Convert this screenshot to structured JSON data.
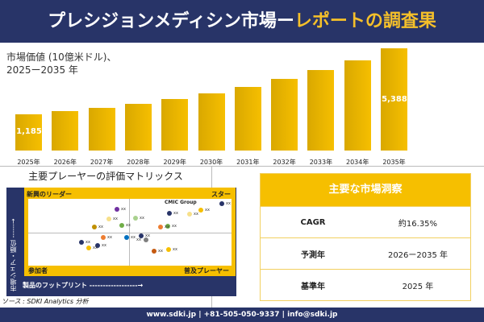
{
  "header": {
    "title_main": "プレシジョンメディシン市場ー",
    "title_accent": "レポートの調査果"
  },
  "chart_data": {
    "type": "bar",
    "title": "市場価値 (10億米ドル)、",
    "subtitle": "2025ー2035 年",
    "categories": [
      "2025年",
      "2026年",
      "2027年",
      "2028年",
      "2029年",
      "2030年",
      "2031年",
      "2032年",
      "2033年",
      "2034年",
      "2035年"
    ],
    "values": [
      1185,
      1379,
      1604,
      1866,
      2171,
      2526,
      2939,
      3420,
      3979,
      4630,
      5388
    ],
    "data_labels": {
      "0": "1,185",
      "10": "5,388"
    },
    "bar_color": "#f6bf00"
  },
  "matrix": {
    "title": "主要プレーヤーの評価マトリックス",
    "quadrants": {
      "top_left": "新興のリーダー",
      "top_right": "スター",
      "bottom_left": "参加者",
      "bottom_right": "普及プレーヤー"
    },
    "highlight": "CMIC Group",
    "y_axis": "市場シェア・順位 ------→",
    "x_axis": "製品のフットプリント ------------------→",
    "point_label": "xx"
  },
  "source": "ソース : SDKI Analytics 分析",
  "insights": {
    "title": "主要な市場洞察",
    "rows": [
      {
        "k": "CAGR",
        "v": "約16.35%"
      },
      {
        "k": "予測年",
        "v": "2026ー2035 年"
      },
      {
        "k": "基準年",
        "v": "2025 年"
      }
    ]
  },
  "footer": "www.sdki.jp | +81-505-050-9337 | info@sdki.jp"
}
